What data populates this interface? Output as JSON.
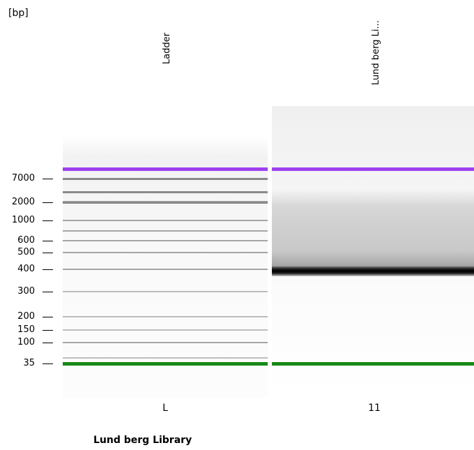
{
  "unit_label": "[bp]",
  "footer_title": "Lund berg Library",
  "chart_data": {
    "type": "gel",
    "y_unit": "[bp]",
    "y_ticks": [
      7000,
      2000,
      1000,
      600,
      500,
      400,
      300,
      200,
      150,
      100,
      35
    ],
    "y_tick_labels": [
      "7000",
      "2000",
      "1000",
      "600",
      "500",
      "400",
      "300",
      "200",
      "150",
      "100",
      "35"
    ],
    "marker_colors": {
      "upper": "#a040f0",
      "lower": "#168816"
    },
    "lanes": [
      {
        "id": "L",
        "name": "Ladder",
        "bands_bp": [
          10380,
          7000,
          4000,
          3000,
          2000,
          1000,
          700,
          600,
          500,
          400,
          300,
          200,
          150,
          100,
          50,
          35
        ]
      },
      {
        "id": "11",
        "name": "Lund berg Li...",
        "bands_bp": [
          10380,
          380,
          35
        ],
        "smear_bp": [
          3000,
          420
        ]
      }
    ]
  }
}
